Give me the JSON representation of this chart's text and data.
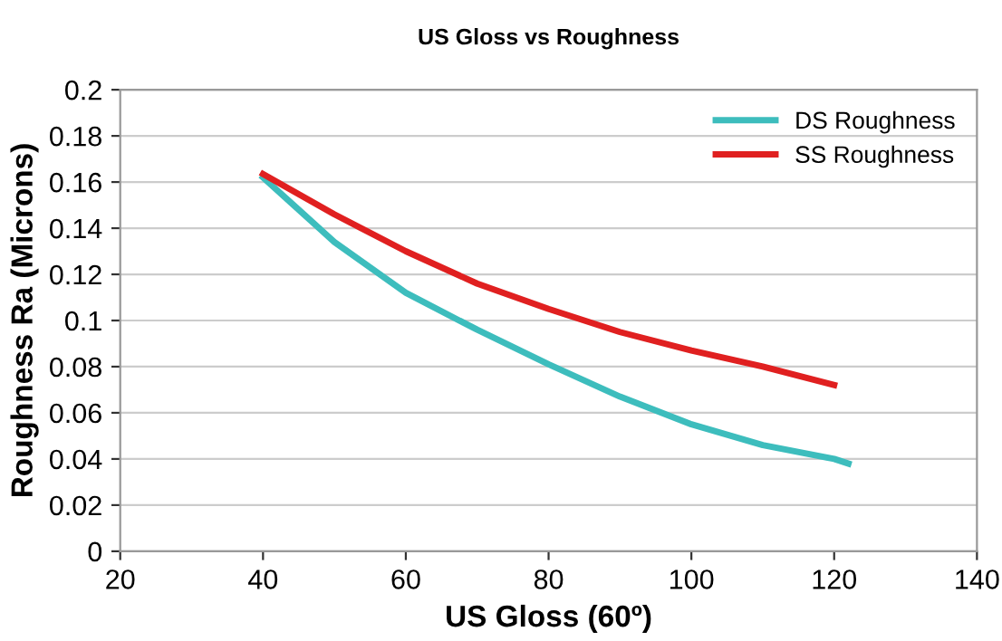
{
  "chart_data": {
    "type": "line",
    "title": "US Gloss vs Roughness",
    "xlabel": "US Gloss (60º)",
    "ylabel": "Roughness Ra (Microns)",
    "xlim": [
      20,
      140
    ],
    "xticks": [
      20,
      40,
      60,
      80,
      100,
      120,
      140
    ],
    "ylim": [
      0,
      0.2
    ],
    "yticks": [
      0,
      0.02,
      0.04,
      0.06,
      0.08,
      0.1,
      0.12,
      0.14,
      0.16,
      0.18,
      0.2
    ],
    "grid": "y",
    "legend": "top right",
    "marker": "none",
    "line_style": "solid",
    "series": [
      {
        "name": "DS Roughness",
        "color": "#3dbdbd",
        "x": [
          40,
          45,
          50,
          60,
          70,
          80,
          90,
          100,
          110,
          120,
          122
        ],
        "values": [
          0.162,
          0.148,
          0.134,
          0.112,
          0.096,
          0.081,
          0.067,
          0.055,
          0.046,
          0.04,
          0.038
        ]
      },
      {
        "name": "SS Roughness",
        "color": "#e02020",
        "x": [
          40,
          50,
          60,
          70,
          80,
          90,
          100,
          110,
          120
        ],
        "values": [
          0.1635,
          0.146,
          0.13,
          0.116,
          0.105,
          0.095,
          0.087,
          0.08,
          0.072
        ]
      }
    ]
  }
}
